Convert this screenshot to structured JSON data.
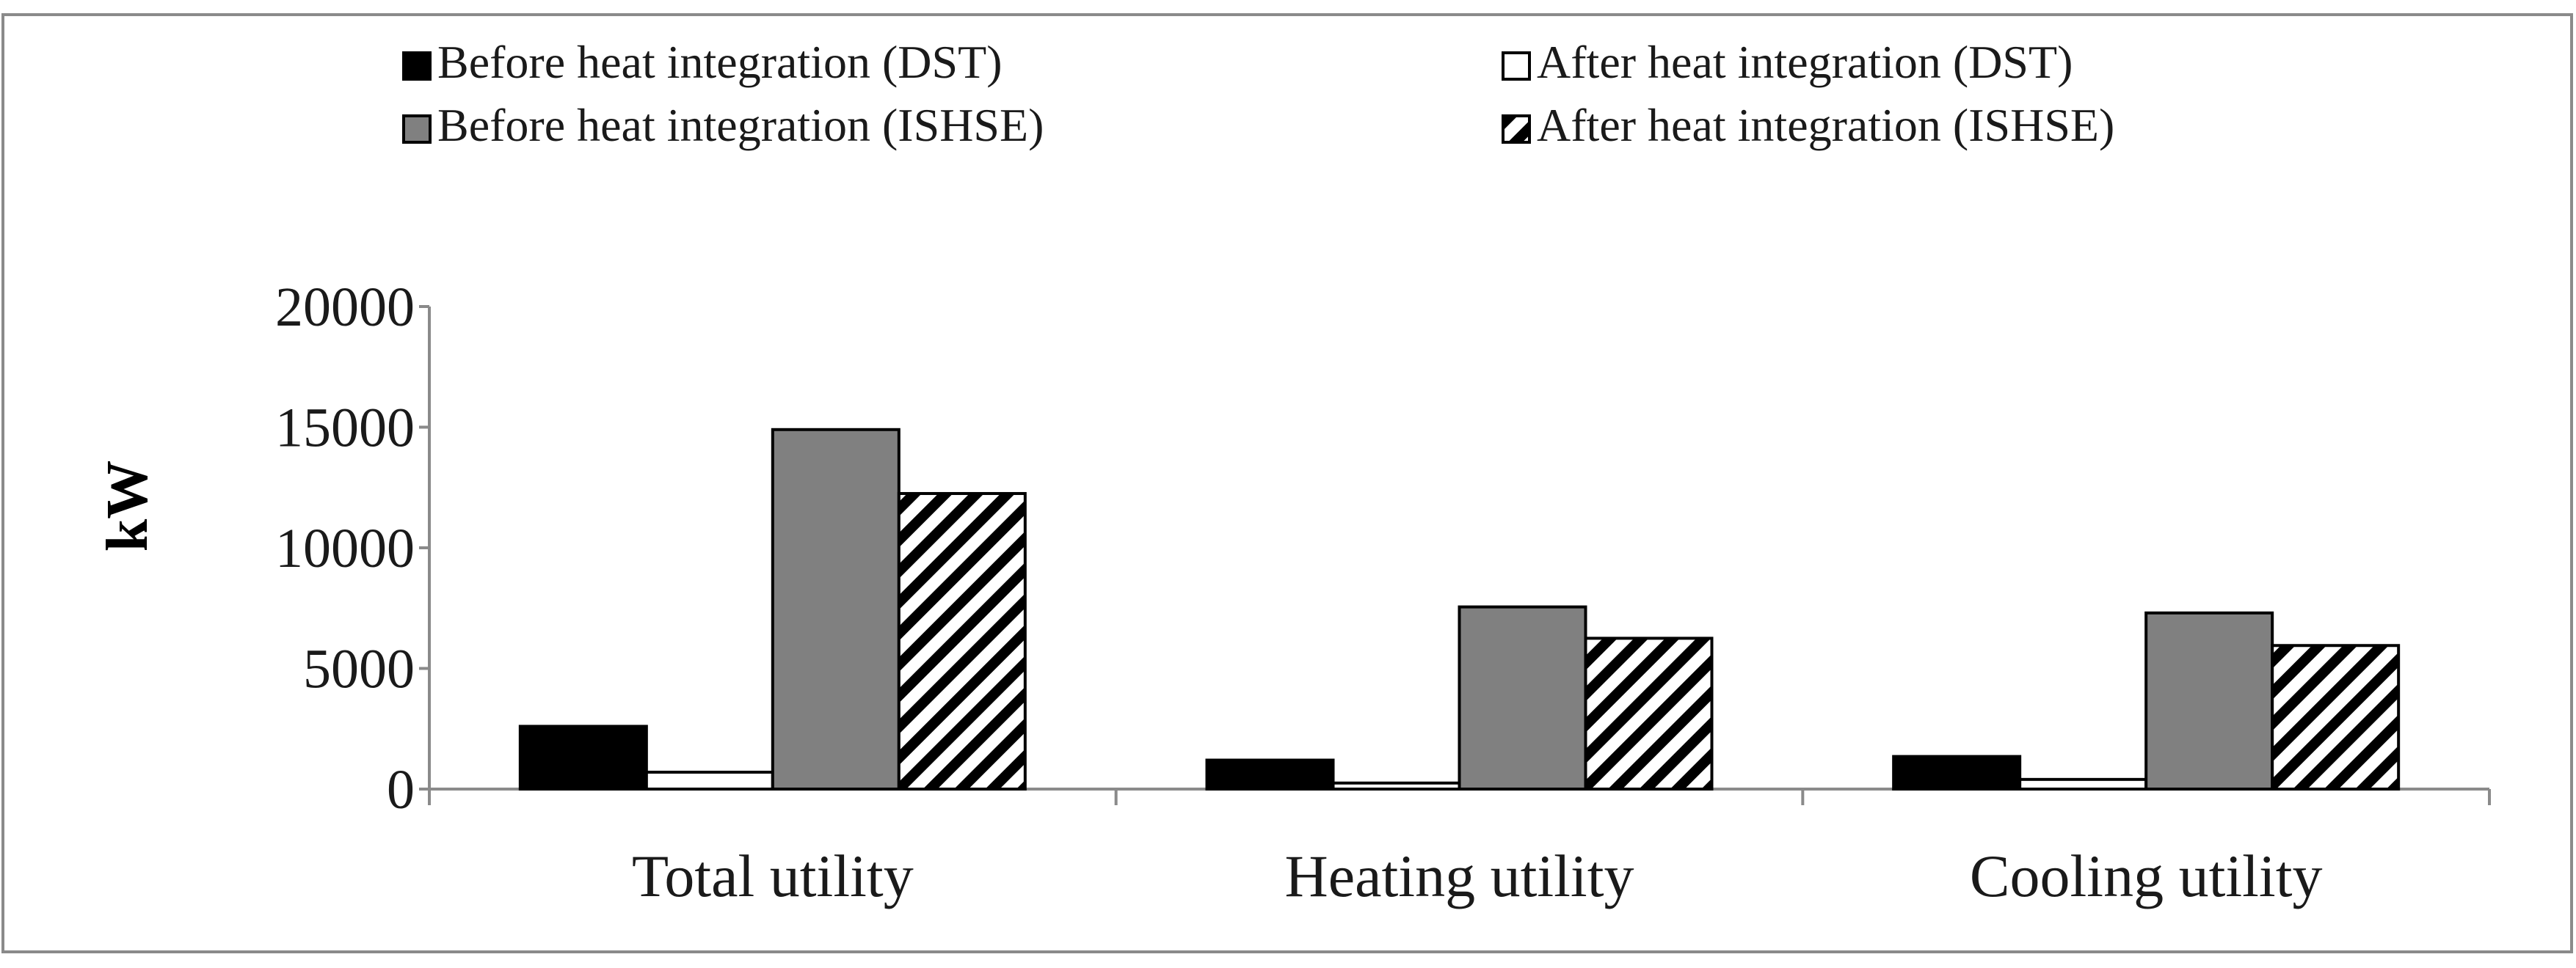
{
  "chart_data": {
    "type": "bar",
    "title": "",
    "xlabel": "",
    "ylabel": "kW",
    "ylim": [
      0,
      20000
    ],
    "yticks": [
      0,
      5000,
      10000,
      15000,
      20000
    ],
    "grid": false,
    "legend_position": "top",
    "categories": [
      "Total utility",
      "Heating utility",
      "Cooling utility"
    ],
    "series": [
      {
        "name": "Before heat integration (DST)",
        "fill": "#000000",
        "pattern": "solid",
        "values": [
          2600,
          1200,
          1350
        ]
      },
      {
        "name": "After heat integration (DST)",
        "fill": "#ffffff",
        "pattern": "solid",
        "values": [
          700,
          250,
          400
        ]
      },
      {
        "name": "Before heat integration (ISHSE)",
        "fill": "#808080",
        "pattern": "solid",
        "values": [
          14900,
          7550,
          7300
        ]
      },
      {
        "name": "After heat integration (ISHSE)",
        "fill": "#ffffff",
        "pattern": "diagonal-stripes",
        "values": [
          12250,
          6250,
          5950
        ]
      }
    ]
  }
}
